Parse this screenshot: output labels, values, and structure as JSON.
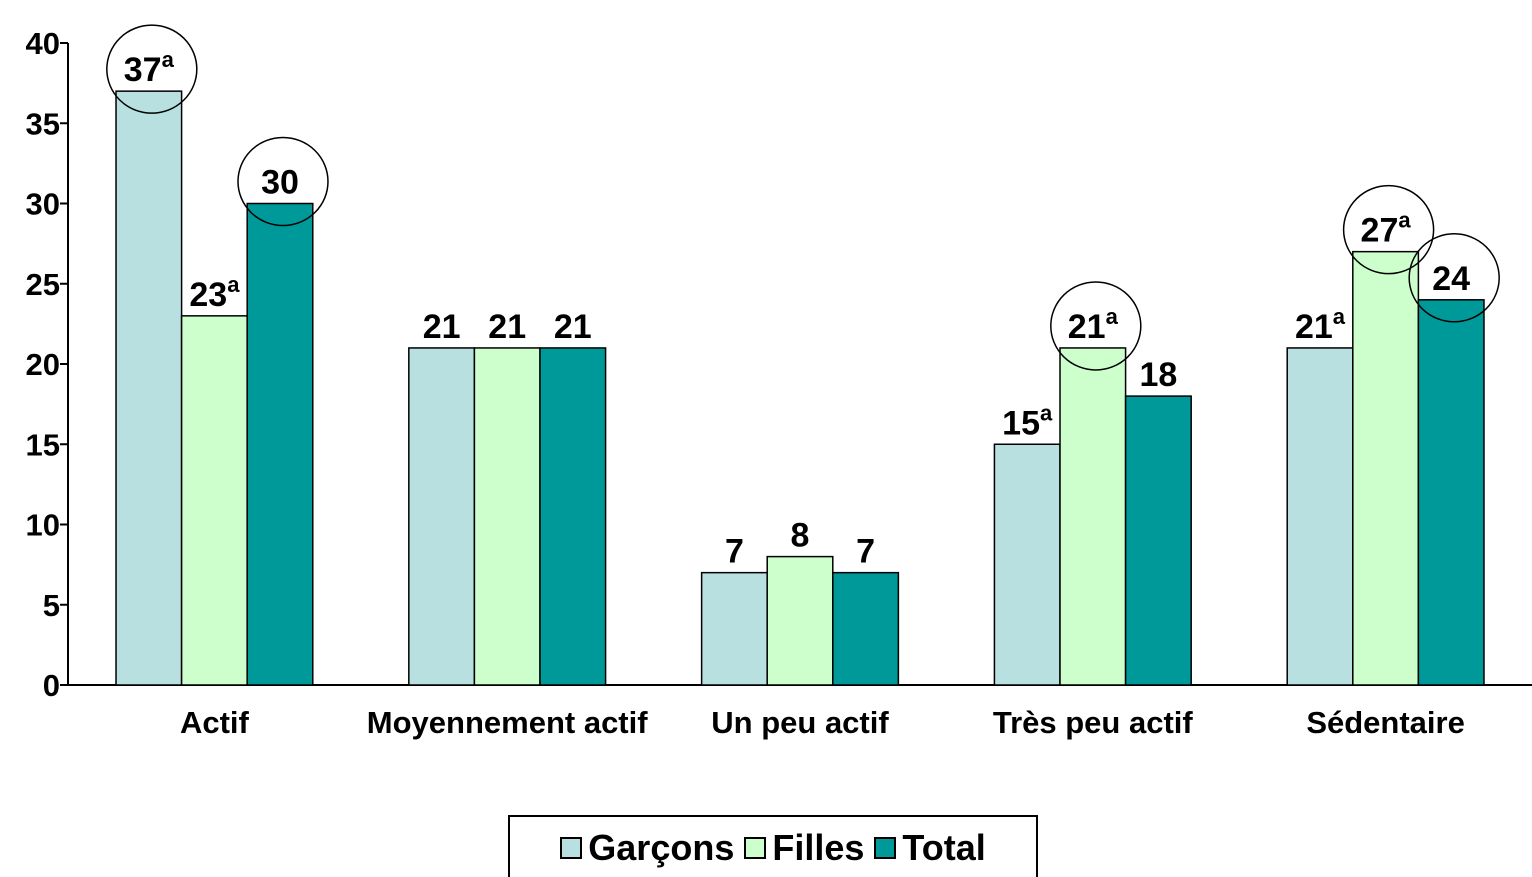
{
  "chart_data": {
    "type": "bar",
    "categories": [
      "Actif",
      "Moyennement actif",
      "Un peu actif",
      "Très peu actif",
      "Sédentaire"
    ],
    "series": [
      {
        "name": "Garçons",
        "color": "#b8e0e0",
        "values": [
          37,
          21,
          7,
          15,
          21
        ],
        "value_labels": [
          "37a",
          "21",
          "7",
          "15a",
          "21a"
        ],
        "circled": [
          true,
          false,
          false,
          false,
          false
        ]
      },
      {
        "name": "Filles",
        "color": "#ccffcc",
        "values": [
          23,
          21,
          8,
          21,
          27
        ],
        "value_labels": [
          "23a",
          "21",
          "8",
          "21a",
          "27a"
        ],
        "circled": [
          false,
          false,
          false,
          true,
          true
        ]
      },
      {
        "name": "Total",
        "color": "#009999",
        "values": [
          30,
          21,
          7,
          18,
          24
        ],
        "value_labels": [
          "30",
          "21",
          "7",
          "18",
          "24"
        ],
        "circled": [
          true,
          false,
          false,
          false,
          true
        ]
      }
    ],
    "ylim": [
      0,
      40
    ],
    "yticks": [
      0,
      5,
      10,
      15,
      20,
      25,
      30,
      35,
      40
    ],
    "grid": false,
    "legend": "bottom"
  }
}
